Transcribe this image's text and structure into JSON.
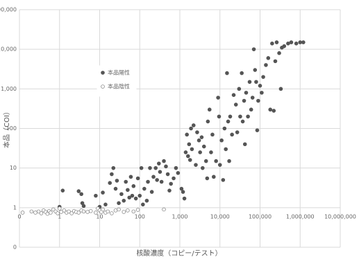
{
  "chart_data": {
    "type": "scatter",
    "x_label": "核酸濃度（コピー/テスト）",
    "y_label": "本品（COI）",
    "log_x": true,
    "log_y": true,
    "grid": true,
    "legend_position": "left",
    "xlim": [
      0.1,
      10000000
    ],
    "xticks": [
      {
        "value": 0.1,
        "label": "0"
      },
      1,
      10,
      100,
      {
        "value": 1000,
        "label": "1,000"
      },
      {
        "value": 10000,
        "label": "10,000"
      },
      {
        "value": 100000,
        "label": "100,000"
      },
      {
        "value": 1000000,
        "label": "1,000,000"
      },
      {
        "value": 10000000,
        "label": "10,000,000"
      }
    ],
    "ylim": [
      0.1,
      100000
    ],
    "yticks": [
      {
        "value": 0.1,
        "label": "0"
      },
      1,
      10,
      100,
      {
        "value": 1000,
        "label": "1,000"
      },
      {
        "value": 10000,
        "label": "10,000"
      },
      {
        "value": 100000,
        "label": "100,000"
      }
    ],
    "series": [
      {
        "name": "本品陽性",
        "color": "#555555",
        "filled": true,
        "x": [
          1,
          1.2,
          3,
          3.5,
          3.7,
          4,
          8,
          10,
          12,
          14,
          18,
          20,
          22,
          25,
          27,
          30,
          35,
          40,
          45,
          50,
          55,
          60,
          65,
          70,
          80,
          90,
          100,
          110,
          120,
          130,
          150,
          160,
          180,
          200,
          220,
          250,
          270,
          300,
          320,
          350,
          400,
          450,
          500,
          550,
          600,
          700,
          800,
          900,
          1100,
          1200,
          1300,
          1400,
          1500,
          1600,
          1700,
          1800,
          1900,
          2000,
          2200,
          2500,
          2700,
          3000,
          3200,
          3500,
          3700,
          4000,
          4500,
          4800,
          5000,
          5500,
          6000,
          6500,
          7000,
          8000,
          9000,
          9500,
          10000,
          11000,
          12000,
          13000,
          14000,
          15000,
          16000,
          17000,
          18000,
          20000,
          22000,
          25000,
          27000,
          30000,
          32000,
          35000,
          37000,
          40000,
          42000,
          45000,
          50000,
          55000,
          60000,
          65000,
          70000,
          75000,
          80000,
          85000,
          90000,
          100000,
          110000,
          120000,
          140000,
          160000,
          180000,
          200000,
          220000,
          240000,
          260000,
          300000,
          330000,
          350000,
          400000,
          500000,
          600000,
          800000,
          1000000,
          1200000
        ],
        "values": [
          1.05,
          2.7,
          2.6,
          2.2,
          1.3,
          1.1,
          2,
          1.05,
          2.4,
          1.2,
          4.2,
          7,
          10,
          3,
          4.8,
          1.3,
          2.2,
          1.5,
          4.5,
          2.8,
          1.8,
          6,
          2,
          3.5,
          1.7,
          5.5,
          2,
          10,
          1.2,
          3,
          1.5,
          4.5,
          10,
          2.5,
          6,
          10,
          5,
          13,
          8,
          4.5,
          15,
          11,
          7,
          2.7,
          4,
          5.5,
          10,
          7.5,
          3,
          2.5,
          1.7,
          25,
          70,
          20,
          40,
          16,
          100,
          30,
          120,
          12,
          80,
          50,
          25,
          60,
          10,
          35,
          15,
          5.5,
          150,
          300,
          25,
          70,
          6,
          15,
          600,
          200,
          12,
          50,
          5,
          100,
          30,
          2500,
          150,
          15,
          200,
          70,
          700,
          400,
          80,
          1000,
          200,
          2500,
          150,
          500,
          40,
          800,
          200,
          1500,
          300,
          600,
          10000,
          3000,
          1500,
          90,
          500,
          1200,
          800,
          2000,
          4000,
          6000,
          300,
          14000,
          280,
          5000,
          15000,
          8000,
          1000,
          11000,
          12000,
          14000,
          15000,
          14000,
          15000,
          15000
        ]
      },
      {
        "name": "本品陰性",
        "color": "#888888",
        "filled": false,
        "x": [
          0.12,
          0.2,
          0.25,
          0.3,
          0.35,
          0.4,
          0.45,
          0.5,
          0.55,
          0.6,
          0.7,
          0.8,
          0.9,
          1,
          1.1,
          1.3,
          1.5,
          1.7,
          2,
          2.3,
          2.6,
          3,
          3.5,
          4,
          5,
          6,
          8,
          9,
          10,
          11,
          12,
          14,
          16,
          20,
          25,
          30,
          40,
          50,
          70,
          90,
          400
        ],
        "values": [
          0.75,
          0.8,
          0.75,
          0.8,
          0.72,
          0.85,
          0.78,
          0.7,
          0.82,
          0.75,
          0.9,
          0.8,
          0.72,
          0.95,
          0.78,
          0.85,
          0.75,
          0.8,
          0.72,
          0.82,
          0.78,
          0.75,
          0.85,
          0.8,
          0.78,
          0.82,
          0.75,
          0.95,
          0.85,
          0.78,
          0.9,
          0.75,
          0.8,
          0.72,
          0.85,
          0.9,
          0.78,
          0.85,
          0.8,
          0.88,
          0.9
        ]
      }
    ]
  }
}
